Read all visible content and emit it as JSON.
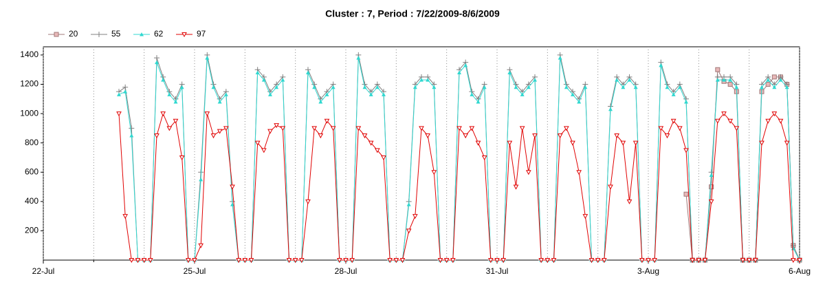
{
  "chart_data": {
    "type": "line",
    "title": "Cluster : 7, Period : 7/22/2009-8/6/2009",
    "x": [
      1.5,
      1.625,
      1.75,
      1.875,
      2,
      2.125,
      2.25,
      2.375,
      2.5,
      2.625,
      2.75,
      2.875,
      3,
      3.125,
      3.25,
      3.375,
      3.5,
      3.625,
      3.75,
      3.875,
      4,
      4.125,
      4.25,
      4.375,
      4.5,
      4.625,
      4.75,
      4.875,
      5,
      5.125,
      5.25,
      5.375,
      5.5,
      5.625,
      5.75,
      5.875,
      6,
      6.125,
      6.25,
      6.375,
      6.5,
      6.625,
      6.75,
      6.875,
      7,
      7.125,
      7.25,
      7.375,
      7.5,
      7.625,
      7.75,
      7.875,
      8,
      8.125,
      8.25,
      8.375,
      8.5,
      8.625,
      8.75,
      8.875,
      9,
      9.125,
      9.25,
      9.375,
      9.5,
      9.625,
      9.75,
      9.875,
      10,
      10.125,
      10.25,
      10.375,
      10.5,
      10.625,
      10.75,
      10.875,
      11,
      11.125,
      11.25,
      11.375,
      11.5,
      11.625,
      11.75,
      11.875,
      12,
      12.125,
      12.25,
      12.375,
      12.5,
      12.625,
      12.75,
      12.875,
      13,
      13.125,
      13.25,
      13.375,
      13.5,
      13.625,
      13.75,
      13.875,
      14,
      14.125,
      14.25,
      14.375,
      14.5,
      14.625,
      14.75,
      14.875,
      15
    ],
    "series": [
      {
        "name": "20",
        "color": "#a07878",
        "fill": "#e8b8b8",
        "marker": "square",
        "values": [
          null,
          null,
          null,
          null,
          null,
          null,
          null,
          null,
          null,
          null,
          null,
          null,
          null,
          null,
          null,
          null,
          null,
          null,
          null,
          null,
          null,
          null,
          null,
          null,
          null,
          null,
          null,
          null,
          null,
          null,
          null,
          null,
          null,
          null,
          null,
          null,
          null,
          null,
          null,
          null,
          null,
          null,
          null,
          null,
          null,
          null,
          null,
          null,
          null,
          null,
          null,
          null,
          null,
          null,
          null,
          null,
          null,
          null,
          null,
          null,
          null,
          null,
          null,
          null,
          null,
          null,
          null,
          null,
          null,
          null,
          null,
          null,
          null,
          null,
          null,
          null,
          null,
          null,
          null,
          null,
          null,
          null,
          null,
          null,
          null,
          null,
          null,
          null,
          null,
          null,
          450,
          0,
          0,
          0,
          500,
          1300,
          1220,
          1200,
          1150,
          0,
          0,
          0,
          1150,
          1200,
          1250,
          1250,
          1200,
          100,
          0
        ]
      },
      {
        "name": "55",
        "color": "#808080",
        "marker": "plus",
        "values": [
          1150,
          1180,
          900,
          0,
          0,
          0,
          1380,
          1250,
          1150,
          1100,
          1200,
          0,
          0,
          600,
          1400,
          1200,
          1100,
          1150,
          400,
          0,
          0,
          0,
          1300,
          1250,
          1150,
          1200,
          1250,
          0,
          0,
          0,
          1300,
          1200,
          1100,
          1150,
          1200,
          0,
          0,
          0,
          1400,
          1200,
          1150,
          1200,
          1150,
          0,
          0,
          0,
          400,
          1200,
          1250,
          1250,
          1200,
          0,
          0,
          0,
          1300,
          1350,
          1150,
          1100,
          1200,
          0,
          0,
          0,
          1300,
          1200,
          1150,
          1200,
          1250,
          0,
          0,
          0,
          1400,
          1200,
          1150,
          1100,
          1200,
          0,
          0,
          0,
          1050,
          1250,
          1200,
          1250,
          1200,
          0,
          0,
          0,
          1350,
          1200,
          1150,
          1200,
          1100,
          0,
          0,
          0,
          600,
          1250,
          1250,
          1250,
          1200,
          0,
          0,
          0,
          1200,
          1250,
          1200,
          1250,
          1200,
          100,
          0
        ]
      },
      {
        "name": "62",
        "color": "#30d8d0",
        "marker": "triangle",
        "values": [
          1130,
          1150,
          850,
          0,
          0,
          0,
          1350,
          1230,
          1130,
          1080,
          1180,
          0,
          0,
          550,
          1380,
          1180,
          1080,
          1130,
          380,
          0,
          0,
          0,
          1280,
          1230,
          1130,
          1180,
          1230,
          0,
          0,
          0,
          1280,
          1180,
          1080,
          1130,
          1180,
          0,
          0,
          0,
          1380,
          1180,
          1130,
          1180,
          1130,
          0,
          0,
          0,
          380,
          1180,
          1230,
          1230,
          1180,
          0,
          0,
          0,
          1280,
          1330,
          1130,
          1080,
          1180,
          0,
          0,
          0,
          1280,
          1180,
          1130,
          1180,
          1230,
          0,
          0,
          0,
          1380,
          1180,
          1130,
          1080,
          1180,
          0,
          0,
          0,
          1030,
          1230,
          1180,
          1230,
          1180,
          0,
          0,
          0,
          1330,
          1180,
          1130,
          1180,
          1080,
          0,
          0,
          0,
          580,
          1230,
          1230,
          1230,
          1180,
          0,
          0,
          0,
          1180,
          1230,
          1180,
          1230,
          1180,
          80,
          0
        ]
      },
      {
        "name": "97",
        "color": "#e00000",
        "marker": "tri-down",
        "values": [
          1000,
          300,
          0,
          0,
          0,
          0,
          850,
          1000,
          900,
          950,
          700,
          0,
          0,
          100,
          1000,
          850,
          880,
          900,
          500,
          0,
          0,
          0,
          800,
          750,
          880,
          920,
          900,
          0,
          0,
          0,
          400,
          900,
          850,
          950,
          900,
          0,
          0,
          0,
          900,
          850,
          800,
          750,
          700,
          0,
          0,
          0,
          200,
          300,
          900,
          850,
          600,
          0,
          0,
          0,
          900,
          850,
          900,
          800,
          700,
          0,
          0,
          0,
          800,
          500,
          900,
          600,
          850,
          0,
          0,
          0,
          850,
          900,
          800,
          600,
          300,
          0,
          0,
          0,
          500,
          850,
          800,
          400,
          800,
          0,
          0,
          0,
          900,
          850,
          950,
          900,
          750,
          0,
          0,
          0,
          400,
          950,
          1000,
          950,
          900,
          0,
          0,
          0,
          800,
          950,
          1000,
          950,
          800,
          0,
          0
        ]
      }
    ],
    "xlim": [
      0,
      15
    ],
    "xticks": [
      {
        "value": 0,
        "label": "22-Jul"
      },
      {
        "value": 3,
        "label": "25-Jul"
      },
      {
        "value": 6,
        "label": "28-Jul"
      },
      {
        "value": 9,
        "label": "31-Jul"
      },
      {
        "value": 12,
        "label": "3-Aug"
      },
      {
        "value": 15,
        "label": "6-Aug"
      }
    ],
    "x_minor_ticks": [
      1,
      2,
      4,
      5,
      7,
      8,
      10,
      11,
      13,
      14
    ],
    "ylim": [
      0,
      1456
    ],
    "yticks": [
      200,
      400,
      600,
      800,
      1000,
      1200,
      1400
    ],
    "grid": true,
    "legend": "top-left"
  }
}
